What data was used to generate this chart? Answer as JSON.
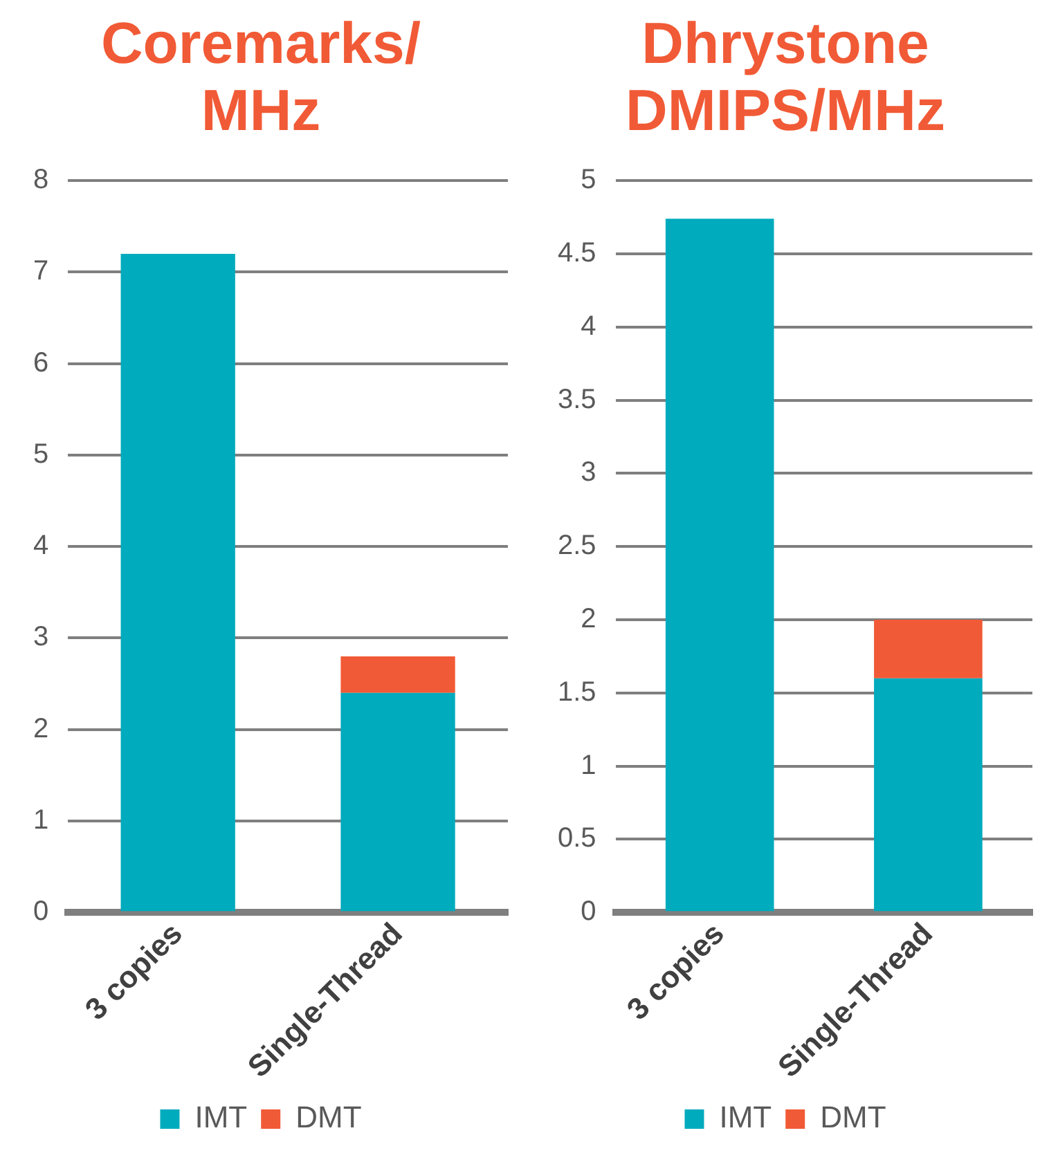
{
  "chart_data": [
    {
      "type": "bar",
      "title": "Coremarks/ MHz",
      "categories": [
        "3 copies",
        "Single-Thread"
      ],
      "stacked": true,
      "series": [
        {
          "name": "IMT",
          "color": "#00abbd",
          "values": [
            7.2,
            2.4
          ]
        },
        {
          "name": "DMT",
          "color": "#f15a36",
          "values": [
            null,
            0.4
          ]
        }
      ],
      "ylim": [
        0,
        8
      ],
      "yticks": [
        0,
        1,
        2,
        3,
        4,
        5,
        6,
        7,
        8
      ],
      "grid": "y",
      "legend": "bottom"
    },
    {
      "type": "bar",
      "title": "Dhrystone DMIPS/MHz",
      "categories": [
        "3 copies",
        "Single-Thread"
      ],
      "stacked": true,
      "series": [
        {
          "name": "IMT",
          "color": "#00abbd",
          "values": [
            4.74,
            1.6
          ]
        },
        {
          "name": "DMT",
          "color": "#f15a36",
          "values": [
            null,
            0.4
          ]
        }
      ],
      "ylim": [
        0,
        5
      ],
      "yticks": [
        0,
        0.5,
        1,
        1.5,
        2,
        2.5,
        3,
        3.5,
        4,
        4.5,
        5
      ],
      "grid": "y",
      "legend": "bottom"
    }
  ]
}
